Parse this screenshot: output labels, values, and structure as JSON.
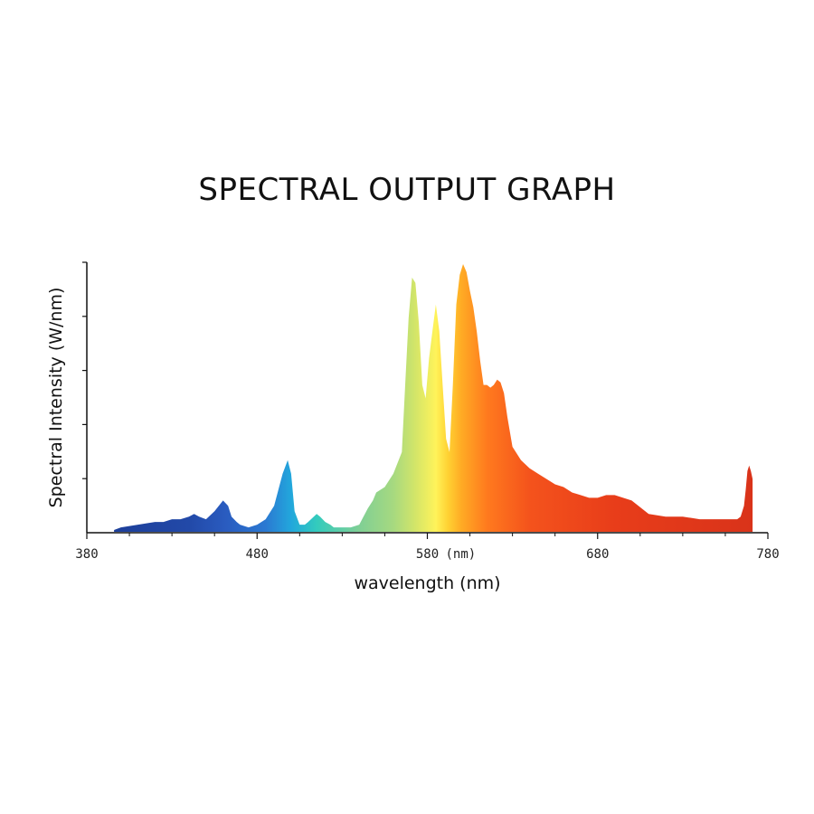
{
  "chart_data": {
    "type": "area",
    "title": "SPECTRAL OUTPUT GRAPH",
    "xlabel": "wavelength (nm)",
    "ylabel": "Spectral Intensity (W/nm)",
    "xlim": [
      380,
      780
    ],
    "ylim": [
      0,
      100
    ],
    "x_ticks": [
      380,
      480,
      580,
      680,
      780
    ],
    "x_tick_labels": [
      "380",
      "480",
      "580",
      "680",
      "780"
    ],
    "x_unit_tick_label": "(nm)",
    "y_tick_count": 5,
    "grid": false,
    "legend": "none",
    "series": [
      {
        "x": [
          396,
          400,
          410,
          420,
          425,
          430,
          435,
          440,
          443,
          446,
          450,
          455,
          460,
          463,
          465,
          468,
          470,
          475,
          480,
          485,
          490,
          495,
          498,
          500,
          502,
          505,
          508,
          510,
          515,
          517,
          520,
          523,
          525,
          530,
          535,
          540,
          545,
          548,
          550,
          555,
          560,
          565,
          567,
          569,
          571,
          573,
          575,
          577,
          579,
          581,
          583,
          585,
          587,
          589,
          591,
          593,
          595,
          597,
          599,
          601,
          603,
          605,
          607,
          609,
          611,
          613,
          615,
          617,
          619,
          621,
          623,
          625,
          627,
          630,
          635,
          640,
          645,
          650,
          655,
          660,
          665,
          670,
          675,
          680,
          685,
          690,
          700,
          710,
          720,
          730,
          740,
          750,
          760,
          762,
          764,
          766,
          767,
          768,
          769,
          770,
          771
        ],
        "y": [
          1,
          2,
          3,
          4,
          4,
          5,
          5,
          6,
          7,
          6,
          5,
          8,
          12,
          10,
          6,
          4,
          3,
          2,
          3,
          5,
          10,
          22,
          27,
          22,
          8,
          3,
          3,
          4,
          7,
          6,
          4,
          3,
          2,
          2,
          2,
          3,
          9,
          12,
          15,
          17,
          22,
          30,
          55,
          80,
          95,
          93,
          78,
          55,
          50,
          65,
          75,
          85,
          75,
          55,
          35,
          30,
          55,
          85,
          96,
          100,
          97,
          90,
          84,
          75,
          64,
          55,
          55,
          54,
          55,
          57,
          56,
          52,
          43,
          32,
          27,
          24,
          22,
          20,
          18,
          17,
          15,
          14,
          13,
          13,
          14,
          14,
          12,
          7,
          6,
          6,
          5,
          5,
          5,
          5,
          6,
          10,
          16,
          23,
          25,
          23,
          20
        ]
      }
    ],
    "spectrum_colors": [
      {
        "nm": 396,
        "color": "#1d3f9a"
      },
      {
        "nm": 440,
        "color": "#2249a8"
      },
      {
        "nm": 462,
        "color": "#2a5cc0"
      },
      {
        "nm": 485,
        "color": "#2b79d2"
      },
      {
        "nm": 500,
        "color": "#22a7dc"
      },
      {
        "nm": 515,
        "color": "#33cbbd"
      },
      {
        "nm": 540,
        "color": "#7fcf95"
      },
      {
        "nm": 560,
        "color": "#a6d980"
      },
      {
        "nm": 572,
        "color": "#d0e46a"
      },
      {
        "nm": 585,
        "color": "#fff35a"
      },
      {
        "nm": 592,
        "color": "#ffd233"
      },
      {
        "nm": 600,
        "color": "#ffab24"
      },
      {
        "nm": 615,
        "color": "#ff7a1e"
      },
      {
        "nm": 640,
        "color": "#f4531c"
      },
      {
        "nm": 690,
        "color": "#e83d1a"
      },
      {
        "nm": 771,
        "color": "#d9331a"
      }
    ]
  }
}
